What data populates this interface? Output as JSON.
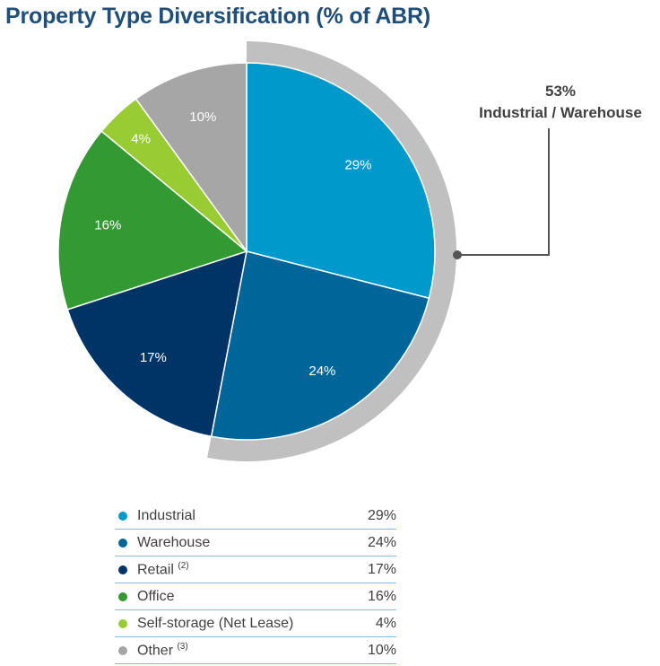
{
  "chart_data": {
    "type": "pie",
    "title": "Property Type Diversification (% of ABR)",
    "slices": [
      {
        "name": "Industrial",
        "value": 29,
        "label": "29%",
        "color": "#0099cc"
      },
      {
        "name": "Warehouse",
        "value": 24,
        "label": "24%",
        "color": "#006699"
      },
      {
        "name": "Retail",
        "value": 17,
        "label": "17%",
        "color": "#003366"
      },
      {
        "name": "Office",
        "value": 16,
        "label": "16%",
        "color": "#339933"
      },
      {
        "name": "Self-storage (Net Lease)",
        "value": 4,
        "label": "4%",
        "color": "#99cc33"
      },
      {
        "name": "Other",
        "value": 10,
        "label": "10%",
        "color": "#a6a6a6"
      }
    ],
    "callout": {
      "value": "53%",
      "text": "Industrial / Warehouse",
      "covers": [
        "Industrial",
        "Warehouse"
      ]
    }
  },
  "legend": [
    {
      "label": "Industrial",
      "sup": "",
      "value": "29%",
      "color": "#0099cc"
    },
    {
      "label": "Warehouse",
      "sup": "",
      "value": "24%",
      "color": "#006699"
    },
    {
      "label": "Retail",
      "sup": "(2)",
      "value": "17%",
      "color": "#003366"
    },
    {
      "label": "Office",
      "sup": "",
      "value": "16%",
      "color": "#339933"
    },
    {
      "label": "Self-storage (Net Lease)",
      "sup": "",
      "value": "4%",
      "color": "#99cc33"
    },
    {
      "label": "Other",
      "sup": "(3)",
      "value": "10%",
      "color": "#a6a6a6"
    }
  ],
  "colors": {
    "title": "#1f4e79",
    "arc": "#c0c0c0",
    "callout_line": "#555555"
  }
}
